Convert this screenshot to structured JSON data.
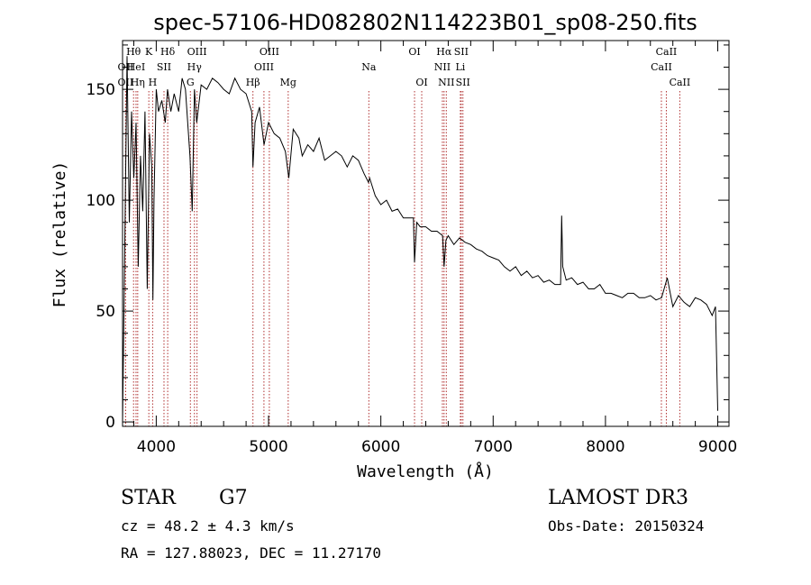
{
  "chart_data": {
    "type": "line",
    "title": "spec-57106-HD082802N114223B01_sp08-250.fits",
    "xlabel": "Wavelength (Å)",
    "ylabel": "Flux (relative)",
    "xlim": [
      3700,
      9100
    ],
    "ylim": [
      -2,
      172
    ],
    "xticks": [
      4000,
      5000,
      6000,
      7000,
      8000,
      9000
    ],
    "yticks": [
      0,
      50,
      100,
      150
    ],
    "series": [
      {
        "name": "spectrum",
        "x": [
          3700,
          3720,
          3740,
          3760,
          3780,
          3800,
          3820,
          3840,
          3860,
          3880,
          3900,
          3920,
          3940,
          3960,
          3970,
          3980,
          4000,
          4020,
          4050,
          4080,
          4100,
          4130,
          4160,
          4200,
          4230,
          4260,
          4300,
          4320,
          4340,
          4360,
          4400,
          4450,
          4500,
          4550,
          4600,
          4650,
          4700,
          4750,
          4800,
          4850,
          4861,
          4880,
          4920,
          4960,
          5000,
          5050,
          5100,
          5150,
          5180,
          5220,
          5270,
          5300,
          5350,
          5400,
          5450,
          5500,
          5550,
          5600,
          5650,
          5700,
          5750,
          5800,
          5850,
          5890,
          5900,
          5950,
          6000,
          6050,
          6100,
          6150,
          6200,
          6250,
          6290,
          6300,
          6320,
          6350,
          6400,
          6450,
          6500,
          6550,
          6563,
          6580,
          6600,
          6650,
          6700,
          6750,
          6800,
          6850,
          6900,
          6950,
          7000,
          7050,
          7100,
          7150,
          7200,
          7250,
          7300,
          7350,
          7400,
          7450,
          7500,
          7550,
          7600,
          7610,
          7620,
          7650,
          7700,
          7750,
          7800,
          7850,
          7900,
          7950,
          8000,
          8050,
          8100,
          8150,
          8200,
          8250,
          8300,
          8350,
          8400,
          8450,
          8500,
          8550,
          8600,
          8650,
          8700,
          8750,
          8800,
          8850,
          8900,
          8950,
          8980,
          9000
        ],
        "y": [
          0,
          80,
          165,
          90,
          140,
          110,
          135,
          70,
          120,
          95,
          140,
          60,
          130,
          115,
          55,
          100,
          150,
          140,
          145,
          135,
          150,
          140,
          148,
          140,
          155,
          150,
          120,
          95,
          150,
          135,
          152,
          150,
          155,
          153,
          150,
          148,
          155,
          150,
          148,
          140,
          115,
          135,
          142,
          125,
          135,
          130,
          128,
          122,
          110,
          132,
          128,
          120,
          125,
          122,
          128,
          118,
          120,
          122,
          120,
          115,
          120,
          118,
          112,
          108,
          110,
          102,
          98,
          100,
          95,
          96,
          92,
          92,
          92,
          72,
          90,
          88,
          88,
          86,
          86,
          84,
          70,
          82,
          84,
          80,
          83,
          81,
          80,
          78,
          77,
          75,
          74,
          73,
          70,
          68,
          70,
          66,
          68,
          65,
          66,
          63,
          64,
          62,
          62,
          93,
          70,
          64,
          65,
          62,
          63,
          60,
          60,
          62,
          58,
          58,
          57,
          56,
          58,
          58,
          56,
          56,
          57,
          55,
          56,
          65,
          52,
          57,
          54,
          52,
          56,
          55,
          53,
          48,
          52,
          5
        ]
      }
    ],
    "emission_lines": [
      {
        "label": "Hθ",
        "x": 3798,
        "row": 1
      },
      {
        "label": "OII",
        "x": 3727,
        "row": 2
      },
      {
        "label": "OII",
        "x": 3727,
        "row": 3
      },
      {
        "label": "HeI",
        "x": 3820,
        "row": 2
      },
      {
        "label": "Hη",
        "x": 3835,
        "row": 3
      },
      {
        "label": "K",
        "x": 3934,
        "row": 1
      },
      {
        "label": "SII",
        "x": 4069,
        "row": 2
      },
      {
        "label": "H",
        "x": 3968,
        "row": 3
      },
      {
        "label": "Hδ",
        "x": 4102,
        "row": 1
      },
      {
        "label": "OIII",
        "x": 4363,
        "row": 1
      },
      {
        "label": "Hγ",
        "x": 4340,
        "row": 2
      },
      {
        "label": "G",
        "x": 4304,
        "row": 3
      },
      {
        "label": "Hβ",
        "x": 4861,
        "row": 3
      },
      {
        "label": "OIII",
        "x": 5007,
        "row": 1
      },
      {
        "label": "OIII",
        "x": 4959,
        "row": 2
      },
      {
        "label": "Mg",
        "x": 5175,
        "row": 3
      },
      {
        "label": "Na",
        "x": 5893,
        "row": 2
      },
      {
        "label": "OI",
        "x": 6300,
        "row": 1
      },
      {
        "label": "OI",
        "x": 6364,
        "row": 3
      },
      {
        "label": "Hα",
        "x": 6563,
        "row": 1
      },
      {
        "label": "NII",
        "x": 6548,
        "row": 2
      },
      {
        "label": "NII",
        "x": 6583,
        "row": 3
      },
      {
        "label": "SII",
        "x": 6716,
        "row": 1
      },
      {
        "label": "Li",
        "x": 6708,
        "row": 2
      },
      {
        "label": "SII",
        "x": 6731,
        "row": 3
      },
      {
        "label": "CaII",
        "x": 8542,
        "row": 1
      },
      {
        "label": "CaII",
        "x": 8498,
        "row": 2
      },
      {
        "label": "CaII",
        "x": 8662,
        "row": 3
      }
    ]
  },
  "info": {
    "class": "STAR",
    "subclass": "G7",
    "survey": "LAMOST DR3",
    "cz": "cz = 48.2 ± 4.3 km/s",
    "obs_date": "Obs-Date: 20150324",
    "radec": "RA = 127.88023, DEC =  11.27170"
  },
  "colors": {
    "line_marker": "#b03030",
    "spectrum": "#000000"
  }
}
